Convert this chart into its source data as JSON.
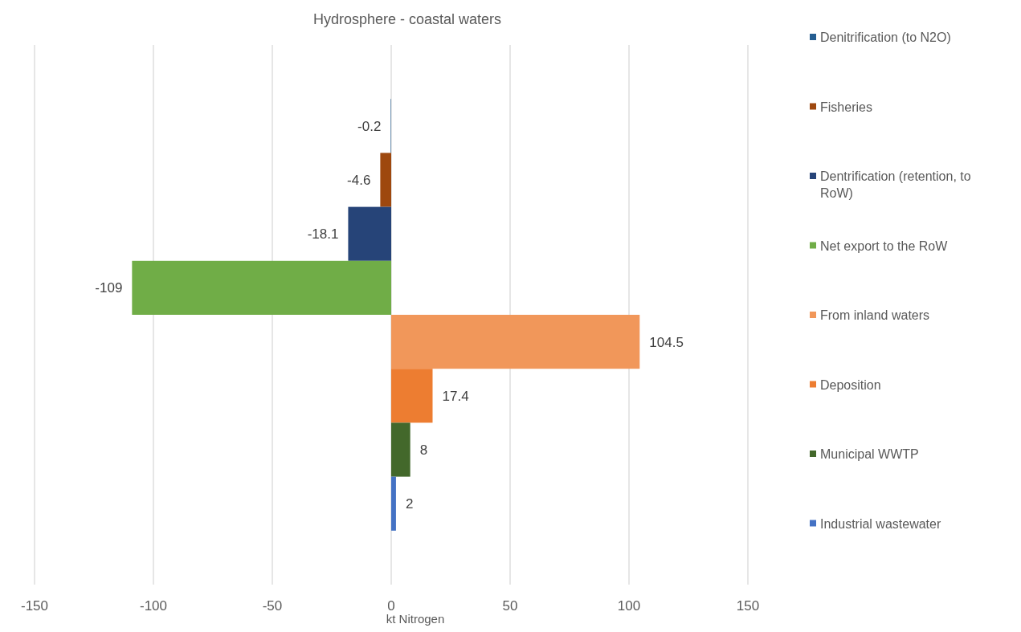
{
  "chart_data": {
    "type": "bar",
    "orientation": "horizontal",
    "title": "Hydrosphere - coastal waters",
    "xlabel": "kt Nitrogen",
    "categories": [
      null
    ],
    "series": [
      {
        "name": "Denitrification (to N2O)",
        "color": "#255e91",
        "values": [
          -0.2
        ]
      },
      {
        "name": "Fisheries",
        "color": "#9e480e",
        "values": [
          -4.6
        ]
      },
      {
        "name": "Dentrification (retention, to RoW)",
        "color": "#264478",
        "values": [
          -18.1
        ]
      },
      {
        "name": "Net export to the RoW",
        "color": "#70ad47",
        "values": [
          -109
        ]
      },
      {
        "name": "From inland waters",
        "color": "#f1975a",
        "values": [
          104.5
        ]
      },
      {
        "name": "Deposition",
        "color": "#ed7d31",
        "values": [
          17.4
        ]
      },
      {
        "name": "Municipal WWTP",
        "color": "#43682b",
        "values": [
          8
        ]
      },
      {
        "name": "Industrial wastewater",
        "color": "#4472c4",
        "values": [
          2
        ]
      }
    ],
    "xlim": [
      -150,
      150
    ],
    "xticks": [
      -150,
      -100,
      -50,
      0,
      50,
      100,
      150
    ],
    "grid": "x",
    "legend": "right",
    "data_labels": true
  }
}
